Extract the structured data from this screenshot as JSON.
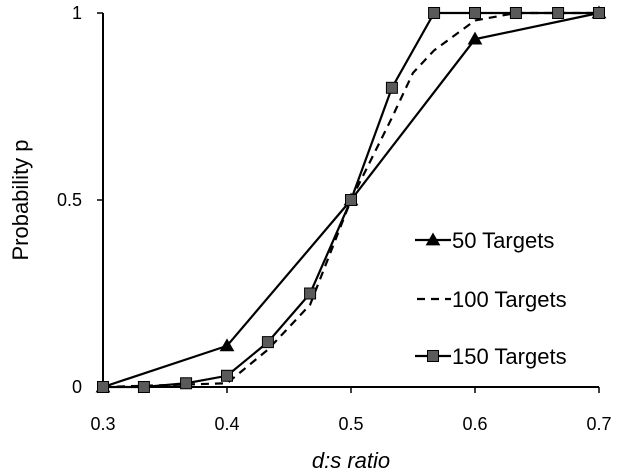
{
  "chart_data": {
    "type": "line",
    "title": "",
    "xlabel": "d:s ratio",
    "ylabel": "Probability p",
    "xlim": [
      0.3,
      0.7
    ],
    "ylim": [
      0,
      1
    ],
    "x_ticks": [
      "0.3",
      "0.4",
      "0.5",
      "0.6",
      "0.7"
    ],
    "y_ticks": [
      "0",
      "0.5",
      "1"
    ],
    "grid": false,
    "legend_position": "right",
    "series": [
      {
        "name": "50 Targets",
        "marker": "triangle",
        "line_style": "solid",
        "color": "#000000",
        "x": [
          0.3,
          0.4,
          0.5,
          0.6,
          0.7
        ],
        "y": [
          0,
          0.11,
          0.5,
          0.93,
          1
        ]
      },
      {
        "name": "100 Targets",
        "marker": "none",
        "line_style": "dashed",
        "color": "#000000",
        "x": [
          0.3,
          0.4,
          0.433,
          0.467,
          0.5,
          0.533,
          0.55,
          0.567,
          0.6,
          0.633,
          0.7
        ],
        "y": [
          0,
          0.01,
          0.1,
          0.22,
          0.5,
          0.72,
          0.84,
          0.9,
          0.98,
          1,
          1
        ]
      },
      {
        "name": "150 Targets",
        "marker": "square",
        "line_style": "solid",
        "color": "#000000",
        "marker_fill": "#5a5a5a",
        "x": [
          0.3,
          0.333,
          0.367,
          0.4,
          0.433,
          0.467,
          0.5,
          0.533,
          0.567,
          0.6,
          0.633,
          0.667,
          0.7
        ],
        "y": [
          0,
          0,
          0.01,
          0.03,
          0.12,
          0.25,
          0.5,
          0.8,
          1,
          1,
          1,
          1,
          1
        ]
      }
    ]
  }
}
